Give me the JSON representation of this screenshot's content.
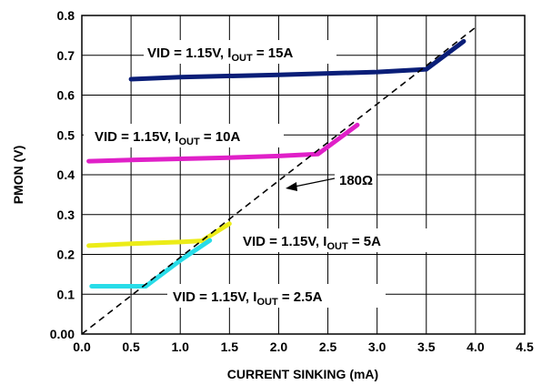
{
  "chart_data": {
    "type": "line",
    "title": "",
    "xlabel": "CURRENT SINKING (mA)",
    "ylabel": "PMON (V)",
    "xlim": [
      0,
      4.5
    ],
    "ylim": [
      0,
      0.8
    ],
    "x_ticks": [
      "0.0",
      "0.5",
      "1.0",
      "1.5",
      "2.0",
      "2.5",
      "3.0",
      "3.5",
      "4.0",
      "4.5"
    ],
    "y_ticks": [
      "0.00",
      "0.1",
      "0.2",
      "0.3",
      "0.4",
      "0.5",
      "0.6",
      "0.7",
      "0.8"
    ],
    "grid": true,
    "series": [
      {
        "color": "#0a1e78",
        "points": [
          [
            0.5,
            0.64
          ],
          [
            1.0,
            0.645
          ],
          [
            2.0,
            0.651
          ],
          [
            3.0,
            0.658
          ],
          [
            3.5,
            0.665
          ],
          [
            3.88,
            0.735
          ]
        ]
      },
      {
        "color": "#e020c8",
        "points": [
          [
            0.07,
            0.434
          ],
          [
            0.5,
            0.437
          ],
          [
            1.0,
            0.44
          ],
          [
            1.5,
            0.443
          ],
          [
            2.0,
            0.447
          ],
          [
            2.4,
            0.452
          ],
          [
            2.8,
            0.525
          ]
        ]
      },
      {
        "color": "#ecec18",
        "points": [
          [
            0.07,
            0.222
          ],
          [
            0.5,
            0.227
          ],
          [
            1.0,
            0.231
          ],
          [
            1.22,
            0.234
          ],
          [
            1.5,
            0.277
          ]
        ]
      },
      {
        "color": "#28dce8",
        "points": [
          [
            0.1,
            0.12
          ],
          [
            0.4,
            0.12
          ],
          [
            0.65,
            0.12
          ],
          [
            1.0,
            0.185
          ],
          [
            1.3,
            0.235
          ]
        ]
      },
      {
        "color": "#000000",
        "style": "dashed",
        "points": [
          [
            0.0,
            0.0
          ],
          [
            4.0,
            0.77
          ]
        ]
      }
    ],
    "annotations": [
      {
        "id": "a15",
        "main": "VID = 1.15V, I",
        "sub": "OUT",
        "tail": " = 15A"
      },
      {
        "id": "a10",
        "main": "VID = 1.15V, I",
        "sub": "OUT",
        "tail": " = 10A"
      },
      {
        "id": "a5",
        "main": "VID = 1.15V, I",
        "sub": "OUT",
        "tail": " = 5A"
      },
      {
        "id": "a25",
        "main": "VID = 1.15V, I",
        "sub": "OUT",
        "tail": " = 2.5A"
      },
      {
        "id": "res",
        "main": "180Ω",
        "sub": "",
        "tail": ""
      }
    ]
  }
}
